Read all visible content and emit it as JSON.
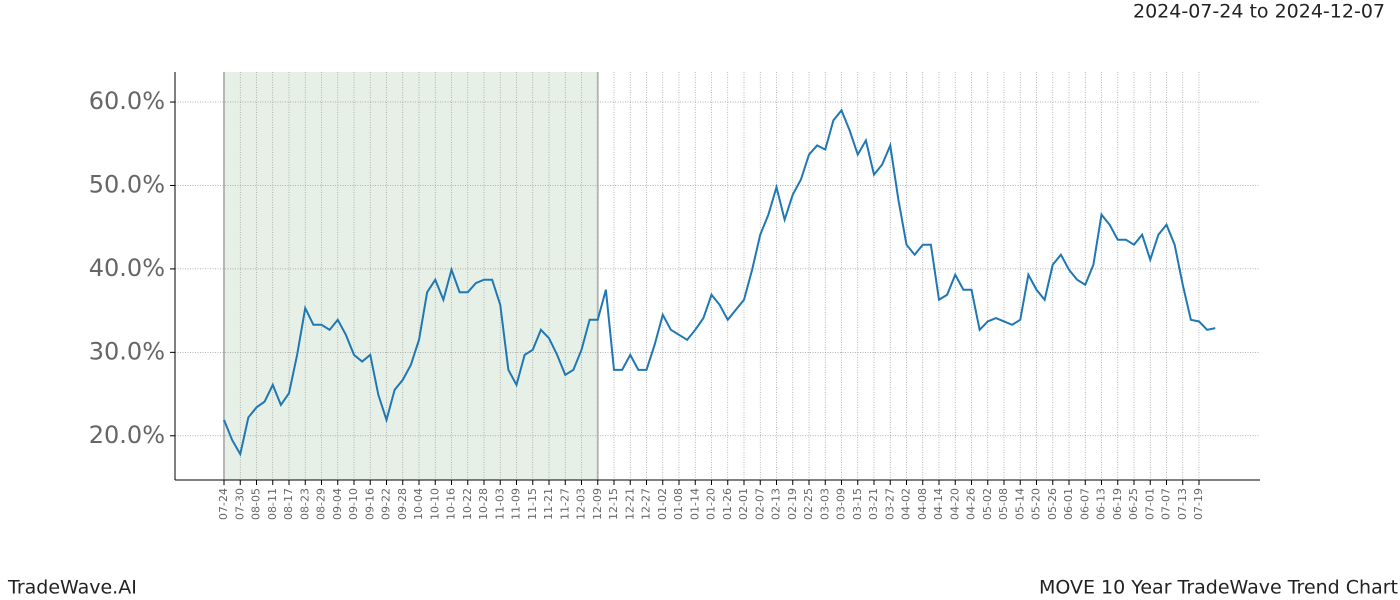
{
  "header": {
    "date_range": "2024-07-24 to 2024-12-07"
  },
  "footer": {
    "brand": "TradeWave.AI",
    "chart_name": "MOVE 10 Year TradeWave Trend Chart"
  },
  "chart_data": {
    "type": "line",
    "categories": [
      "07-24",
      null,
      "07-30",
      null,
      "08-05",
      null,
      "08-11",
      null,
      "08-17",
      null,
      "08-23",
      null,
      "08-29",
      null,
      "09-04",
      null,
      "09-10",
      null,
      "09-16",
      null,
      "09-22",
      null,
      "09-28",
      null,
      "10-04",
      null,
      "10-10",
      null,
      "10-16",
      null,
      "10-22",
      null,
      "10-28",
      null,
      "11-03",
      null,
      "11-09",
      null,
      "11-15",
      null,
      "11-21",
      null,
      "11-27",
      null,
      "12-03",
      null,
      "12-09",
      null,
      "12-15",
      null,
      "12-21",
      null,
      "12-27",
      null,
      "01-02",
      null,
      "01-08",
      null,
      "01-14",
      null,
      "01-20",
      null,
      "01-26",
      null,
      "02-01",
      null,
      "02-07",
      null,
      "02-13",
      null,
      "02-19",
      null,
      "02-25",
      null,
      "03-03",
      null,
      "03-09",
      null,
      "03-15",
      null,
      "03-21",
      null,
      "03-27",
      null,
      "04-02",
      null,
      "04-08",
      null,
      "04-14",
      null,
      "04-20",
      null,
      "04-26",
      null,
      "05-02",
      null,
      "05-08",
      null,
      "05-14",
      null,
      "05-20",
      null,
      "05-26",
      null,
      "06-01",
      null,
      "06-07",
      null,
      "06-13",
      null,
      "06-19",
      null,
      "06-25",
      null,
      "07-01",
      null,
      "07-07",
      null,
      "07-13",
      null,
      "07-19",
      null,
      null
    ],
    "series": [
      {
        "color": "#1f77b4",
        "values": [
          21.9,
          19.5,
          17.8,
          22.2,
          23.4,
          24.1,
          26.1,
          23.7,
          25.1,
          29.7,
          35.3,
          33.3,
          33.3,
          32.7,
          33.9,
          32.1,
          29.7,
          28.9,
          29.7,
          24.9,
          21.9,
          25.5,
          26.7,
          28.5,
          31.5,
          37.2,
          38.7,
          36.3,
          39.9,
          37.2,
          37.2,
          38.3,
          38.7,
          38.7,
          35.7,
          27.9,
          26.1,
          29.7,
          30.3,
          32.7,
          31.7,
          29.7,
          27.3,
          27.9,
          30.3,
          33.9,
          33.9,
          37.5,
          27.9,
          27.9,
          29.7,
          27.9,
          27.9,
          30.9,
          34.5,
          32.7,
          32.1,
          31.5,
          32.7,
          34.1,
          36.9,
          35.7,
          33.9,
          35.1,
          36.3,
          39.9,
          44.1,
          46.5,
          49.8,
          45.9,
          48.9,
          50.7,
          53.7,
          54.8,
          54.3,
          57.8,
          59.0,
          56.6,
          53.7,
          55.4,
          51.3,
          52.5,
          54.8,
          48.3,
          42.9,
          41.7,
          42.9,
          42.9,
          36.3,
          36.9,
          39.3,
          37.5,
          37.5,
          32.7,
          33.7,
          34.1,
          33.7,
          33.3,
          33.9,
          39.3,
          37.5,
          36.3,
          40.5,
          41.7,
          39.9,
          38.7,
          38.1,
          40.5,
          46.5,
          45.3,
          43.5,
          43.5,
          42.9,
          44.1,
          41.1,
          44.1,
          45.3,
          42.9,
          38.1,
          33.9,
          33.7,
          32.7,
          32.9
        ]
      }
    ],
    "ylim": [
      14.7,
      63.6
    ],
    "yticks": [
      {
        "value": 20,
        "label": "20.0%"
      },
      {
        "value": 30,
        "label": "30.0%"
      },
      {
        "value": 40,
        "label": "40.0%"
      },
      {
        "value": 50,
        "label": "50.0%"
      },
      {
        "value": 60,
        "label": "60.0%"
      }
    ],
    "grid": true,
    "highlight_range": [
      "07-24",
      "12-09"
    ],
    "highlight_color": "#e6f0e6"
  }
}
